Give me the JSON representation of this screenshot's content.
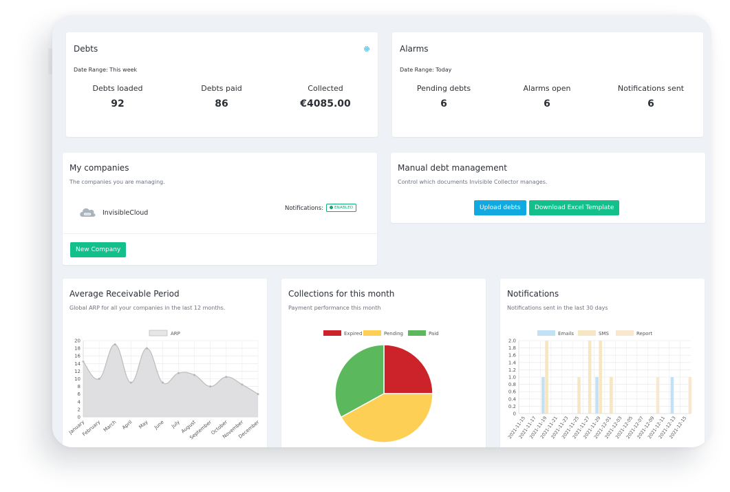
{
  "debts": {
    "title": "Debts",
    "date_range": "Date Range: This week",
    "metrics": [
      {
        "label": "Debts loaded",
        "value": "92"
      },
      {
        "label": "Debts paid",
        "value": "86"
      },
      {
        "label": "Collected",
        "value": "€4085.00"
      }
    ],
    "settings_icon": "gear-icon"
  },
  "alarms": {
    "title": "Alarms",
    "date_range": "Date Range: Today",
    "metrics": [
      {
        "label": "Pending debts",
        "value": "6"
      },
      {
        "label": "Alarms open",
        "value": "6"
      },
      {
        "label": "Notifications sent",
        "value": "6"
      }
    ]
  },
  "companies": {
    "title": "My companies",
    "subtitle": "The companies you are managing.",
    "company_name": "InvisibleCloud",
    "company_icon": "cloud-icon",
    "notifications_label": "Notifications:",
    "status": "ENABLED",
    "new_button": "New Company"
  },
  "manual": {
    "title": "Manual debt management",
    "subtitle": "Control which documents Invisible Collector manages.",
    "upload_button": "Upload debts",
    "template_button": "Download Excel Template"
  },
  "arp": {
    "title": "Average Receivable Period",
    "subtitle": "Global ARP for all your companies in the last 12 months."
  },
  "collections": {
    "title": "Collections for this month",
    "subtitle": "Payment performance this month"
  },
  "notifications": {
    "title": "Notifications",
    "subtitle": "Notifications sent in the last 30 days"
  },
  "colors": {
    "accent_green": "#13c08c",
    "accent_blue": "#12a8e0",
    "expired": "#cc2229",
    "pending": "#fdcf55",
    "paid": "#5cb85c"
  },
  "chart_data": [
    {
      "type": "area",
      "legend": [
        "ARP"
      ],
      "categories": [
        "January",
        "February",
        "March",
        "April",
        "May",
        "June",
        "July",
        "August",
        "September",
        "October",
        "November",
        "December"
      ],
      "series": [
        {
          "name": "ARP",
          "values": [
            14.5,
            10,
            19,
            9,
            18,
            9,
            11.5,
            11,
            8,
            10.5,
            8.5,
            6
          ]
        }
      ],
      "ylim": [
        0,
        20
      ],
      "yticks": [
        "0",
        "2",
        "4",
        "6",
        "8",
        "10",
        "12",
        "14",
        "16",
        "18",
        "20"
      ],
      "grid": true,
      "legend_position": "top"
    },
    {
      "type": "pie",
      "legend": [
        "Expired",
        "Pending",
        "Paid"
      ],
      "values": [
        25,
        42,
        33
      ],
      "legend_position": "top"
    },
    {
      "type": "bar",
      "legend": [
        "Emails",
        "SMS",
        "Report"
      ],
      "categories": [
        "2021-11-15",
        "2021-11-17",
        "2021-11-19",
        "2021-11-21",
        "2021-11-23",
        "2021-11-25",
        "2021-11-27",
        "2021-11-29",
        "2021-12-01",
        "2021-12-03",
        "2021-12-05",
        "2021-12-07",
        "2021-12-09",
        "2021-12-11",
        "2021-12-13",
        "2021-12-15"
      ],
      "series": [
        {
          "name": "Emails",
          "values": [
            0,
            0,
            1,
            0,
            0,
            0,
            0,
            1,
            0,
            0,
            0,
            0,
            0,
            0,
            1,
            0
          ]
        },
        {
          "name": "SMS",
          "values": [
            0,
            0,
            2,
            0,
            0,
            1,
            2,
            2,
            1,
            0,
            0,
            0,
            0,
            0,
            0,
            0
          ]
        },
        {
          "name": "Report",
          "values": [
            0,
            0,
            0,
            0,
            0,
            0,
            0,
            0,
            0,
            0,
            0,
            0,
            1,
            0,
            0,
            1
          ]
        }
      ],
      "ylim": [
        0,
        2.0
      ],
      "yticks": [
        "0",
        "0.2",
        "0.4",
        "0.6",
        "0.8",
        "1.0",
        "1.2",
        "1.4",
        "1.6",
        "1.8",
        "2.0"
      ],
      "grid": true,
      "legend_position": "top"
    }
  ]
}
